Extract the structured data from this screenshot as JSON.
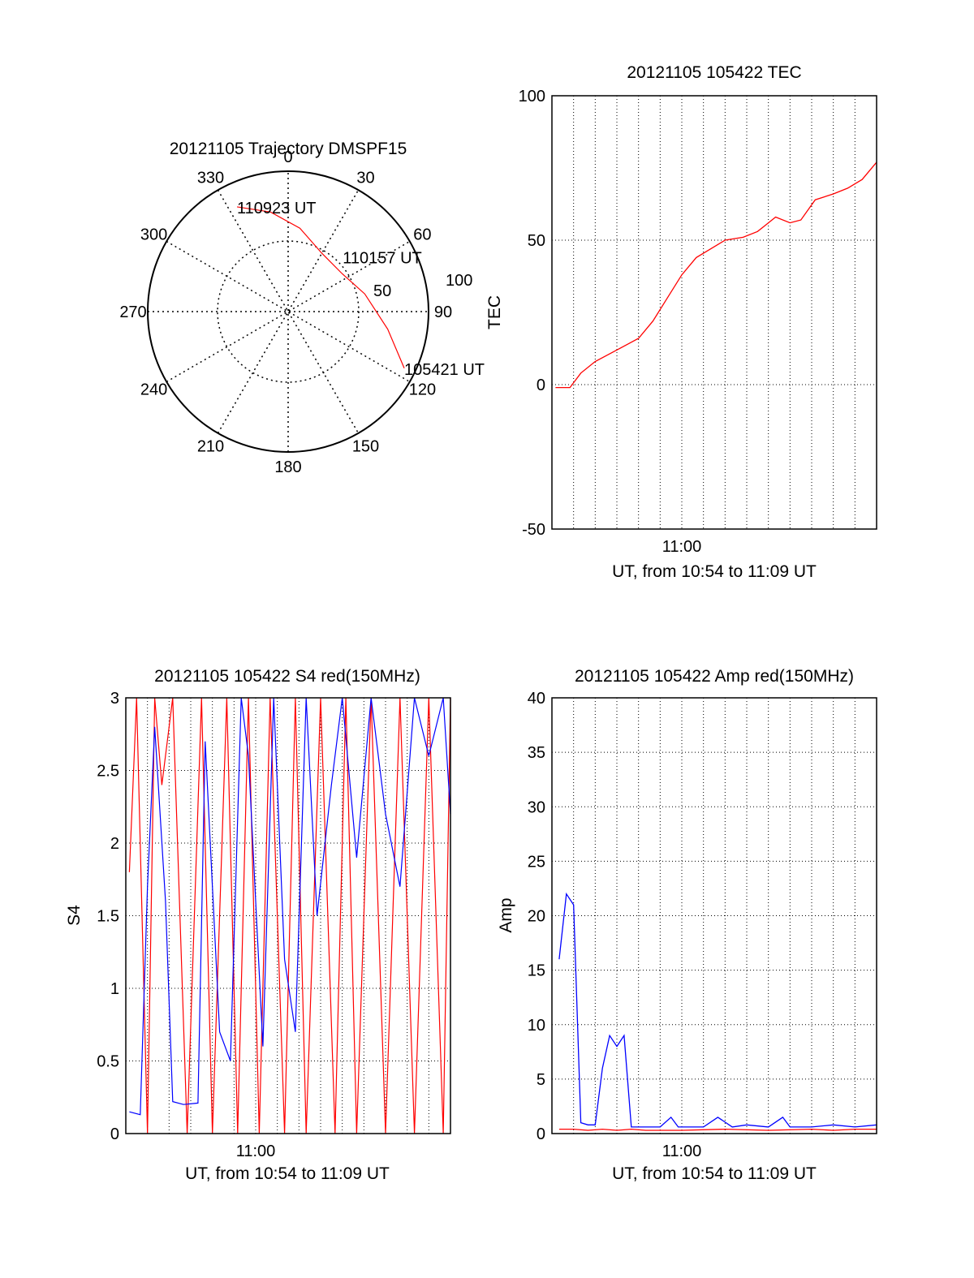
{
  "colors": {
    "red_series": "#ff0000",
    "blue_series": "#0000ff",
    "axis": "#000000",
    "grid": "#000000"
  },
  "chart_data": [
    {
      "id": "trajectory",
      "type": "polar",
      "title": "20121105 Trajectory DMSPF15",
      "azimuth_labels": [
        "0",
        "30",
        "60",
        "90",
        "120",
        "150",
        "180",
        "210",
        "240",
        "270",
        "300",
        "330"
      ],
      "radial_labels": [
        "50",
        "100"
      ],
      "rmax": 100,
      "grid": "dotted",
      "track": {
        "color": "#ff0000",
        "points": [
          {
            "az": 334,
            "r": 83
          },
          {
            "az": 350,
            "r": 72
          },
          {
            "az": 8,
            "r": 60
          },
          {
            "az": 30,
            "r": 48
          },
          {
            "az": 55,
            "r": 47
          },
          {
            "az": 77,
            "r": 56
          },
          {
            "az": 100,
            "r": 72
          },
          {
            "az": 116,
            "r": 92
          }
        ]
      },
      "annotations": [
        {
          "text": "110923 UT",
          "az": 334,
          "r": 83
        },
        {
          "text": "110157 UT",
          "az": 45,
          "r": 55
        },
        {
          "text": "105421 UT",
          "az": 116,
          "r": 92
        }
      ]
    },
    {
      "id": "tec",
      "type": "line",
      "title": "20121105 105422 TEC",
      "ylabel": "TEC",
      "xlabel": "UT, from 10:54 to 11:09 UT",
      "xlim": [
        "10:54",
        "11:09"
      ],
      "ylim": [
        -50,
        100
      ],
      "yticks": [
        "100",
        "50",
        "0",
        "-50"
      ],
      "xticks": [
        "11:00"
      ],
      "grid": true,
      "series": [
        {
          "color": "#ff0000",
          "x": [
            "10:54:10",
            "10:54:50",
            "10:55:20",
            "10:56:00",
            "10:57:00",
            "10:57:30",
            "10:58:00",
            "10:58:40",
            "10:59:20",
            "11:00:00",
            "11:00:40",
            "11:01:20",
            "11:02:00",
            "11:02:50",
            "11:03:30",
            "11:03:50",
            "11:04:20",
            "11:05:00",
            "11:05:30",
            "11:06:10",
            "11:07:00",
            "11:07:40",
            "11:08:20",
            "11:09:00"
          ],
          "values": [
            -1,
            -1,
            4,
            8,
            12,
            14,
            16,
            22,
            30,
            38,
            44,
            47,
            50,
            51,
            53,
            55,
            58,
            56,
            57,
            64,
            66,
            68,
            71,
            77
          ]
        }
      ]
    },
    {
      "id": "s4",
      "type": "line",
      "title": "20121105 105422 S4 red(150MHz)",
      "ylabel": "S4",
      "xlabel": "UT, from 10:54 to 11:09 UT",
      "xlim": [
        "10:54",
        "11:09"
      ],
      "ylim": [
        0,
        3
      ],
      "yticks": [
        "3",
        "2.5",
        "2",
        "1.5",
        "1",
        "0.5",
        "0"
      ],
      "xticks": [
        "11:00"
      ],
      "grid": true,
      "series": [
        {
          "color": "#ff0000",
          "x": [
            "10:54:10",
            "10:54:30",
            "10:55:00",
            "10:55:20",
            "10:55:40",
            "10:56:10",
            "10:56:50",
            "10:57:30",
            "10:58:00",
            "10:58:40",
            "10:59:10",
            "10:59:40",
            "11:00:10",
            "11:00:40",
            "11:01:20",
            "11:01:50",
            "11:02:20",
            "11:03:00",
            "11:03:40",
            "11:04:10",
            "11:04:40",
            "11:05:20",
            "11:06:00",
            "11:06:40",
            "11:07:20",
            "11:08:00",
            "11:08:40",
            "11:09:00"
          ],
          "values": [
            1.8,
            3,
            0,
            3,
            2.4,
            3,
            0,
            3,
            0,
            3,
            0,
            3,
            0,
            3,
            0,
            3,
            0,
            3,
            0,
            3,
            0,
            3,
            0,
            3,
            0,
            3,
            0,
            3
          ]
        },
        {
          "color": "#0000ff",
          "x": [
            "10:54:10",
            "10:54:40",
            "10:55:00",
            "10:55:20",
            "10:55:50",
            "10:56:10",
            "10:56:40",
            "10:57:20",
            "10:57:40",
            "10:58:20",
            "10:58:50",
            "10:59:20",
            "10:59:40",
            "11:00:20",
            "11:00:50",
            "11:01:20",
            "11:01:50",
            "11:02:20",
            "11:02:50",
            "11:03:30",
            "11:04:00",
            "11:04:40",
            "11:05:20",
            "11:06:00",
            "11:06:40",
            "11:07:20",
            "11:08:00",
            "11:08:40",
            "11:09:00"
          ],
          "values": [
            0.15,
            0.13,
            1.7,
            2.8,
            1.6,
            0.22,
            0.2,
            0.21,
            2.7,
            0.7,
            0.5,
            3,
            2.6,
            0.6,
            3,
            1.2,
            0.7,
            3,
            1.5,
            2.4,
            3,
            1.9,
            3,
            2.2,
            1.7,
            3,
            2.6,
            3,
            2.2
          ]
        }
      ]
    },
    {
      "id": "amp",
      "type": "line",
      "title": "20121105 105422 Amp red(150MHz)",
      "ylabel": "Amp",
      "xlabel": "UT, from 10:54 to 11:09 UT",
      "xlim": [
        "10:54",
        "11:09"
      ],
      "ylim": [
        0,
        40
      ],
      "yticks": [
        "40",
        "35",
        "30",
        "25",
        "20",
        "15",
        "10",
        "5",
        "0"
      ],
      "xticks": [
        "11:00"
      ],
      "grid": true,
      "series": [
        {
          "color": "#ff0000",
          "x": [
            "10:54:20",
            "10:55:00",
            "10:55:40",
            "10:56:20",
            "10:57:00",
            "10:57:40",
            "10:58:20",
            "11:00:00",
            "11:02:00",
            "11:04:00",
            "11:06:00",
            "11:07:00",
            "11:08:00",
            "11:09:00"
          ],
          "values": [
            0.4,
            0.4,
            0.3,
            0.4,
            0.3,
            0.4,
            0.3,
            0.3,
            0.4,
            0.3,
            0.4,
            0.3,
            0.4,
            0.4
          ]
        },
        {
          "color": "#0000ff",
          "x": [
            "10:54:20",
            "10:54:40",
            "10:55:00",
            "10:55:20",
            "10:55:40",
            "10:56:00",
            "10:56:20",
            "10:56:40",
            "10:57:00",
            "10:57:20",
            "10:57:40",
            "10:58:20",
            "10:59:00",
            "10:59:30",
            "10:59:50",
            "11:00:40",
            "11:01:00",
            "11:01:40",
            "11:02:20",
            "11:03:00",
            "11:04:00",
            "11:04:40",
            "11:05:00",
            "11:05:20",
            "11:06:00",
            "11:07:00",
            "11:08:00",
            "11:09:00"
          ],
          "values": [
            16,
            22,
            21,
            1,
            0.8,
            0.8,
            6,
            9,
            8,
            9,
            0.6,
            0.6,
            0.6,
            1.5,
            0.6,
            0.6,
            0.6,
            1.5,
            0.6,
            0.8,
            0.6,
            1.5,
            0.6,
            0.6,
            0.6,
            0.8,
            0.6,
            0.8
          ]
        }
      ]
    }
  ]
}
